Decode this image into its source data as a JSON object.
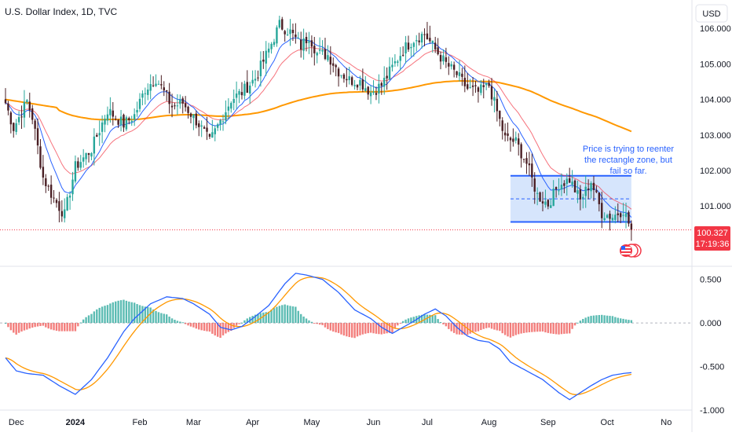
{
  "header": {
    "title": "U.S. Dollar Index, 1D, TVC"
  },
  "currency_button": {
    "label": "USD"
  },
  "price_badge": {
    "price": "100.327",
    "countdown": "17:19:36"
  },
  "annotation": {
    "lines": [
      "Price is trying to reenter",
      "the rectangle zone, but",
      "fail so far."
    ],
    "color": "#2962ff"
  },
  "colors": {
    "up": "#26a69a",
    "down": "#4a1f24",
    "ema_fast": "#2962ff",
    "ema_mid": "#f23645",
    "ema_slow": "#ff9800",
    "macd_line": "#2962ff",
    "signal_line": "#ff9800",
    "hist_pos": "#26a69a",
    "hist_neg": "#ef5350",
    "zone_fill": "#cfe0fb",
    "zone_border": "#2962ff",
    "badge": "#f23645"
  },
  "chart_data": [
    {
      "type": "candlestick",
      "title": "U.S. Dollar Index, 1D, TVC",
      "ylim": [
        99.3,
        106.8
      ],
      "y_ticks": [
        "106.000",
        "105.000",
        "104.000",
        "103.000",
        "102.000",
        "101.000"
      ],
      "y_tick_values": [
        106,
        105,
        104,
        103,
        102,
        101
      ],
      "x_ticks": [
        "Dec",
        "2024",
        "Feb",
        "Mar",
        "Apr",
        "May",
        "Jun",
        "Jul",
        "Aug",
        "Sep",
        "Oct",
        "No"
      ],
      "x_tick_index": [
        4,
        26,
        50,
        70,
        92,
        114,
        137,
        157,
        180,
        202,
        224,
        246
      ],
      "last_price": 100.327,
      "series": [
        {
          "name": "",
          "kind": "ema",
          "period": 10
        },
        {
          "name": "",
          "kind": "ema",
          "period": 20
        },
        {
          "name": "",
          "kind": "ema",
          "period": 200
        }
      ],
      "zone": {
        "top": 101.85,
        "bottom": 100.55,
        "mid": 101.2,
        "start_index": 188,
        "end_index": 233
      },
      "key_closes": [
        [
          0,
          103.9
        ],
        [
          3,
          103.2
        ],
        [
          8,
          103.95
        ],
        [
          10,
          103.5
        ],
        [
          14,
          101.8
        ],
        [
          18,
          101.2
        ],
        [
          22,
          100.75
        ],
        [
          26,
          102.1
        ],
        [
          32,
          102.6
        ],
        [
          38,
          103.7
        ],
        [
          44,
          103.3
        ],
        [
          48,
          103.55
        ],
        [
          52,
          104.3
        ],
        [
          56,
          104.6
        ],
        [
          62,
          103.8
        ],
        [
          66,
          103.9
        ],
        [
          72,
          103.3
        ],
        [
          76,
          102.8
        ],
        [
          80,
          103.4
        ],
        [
          84,
          104.0
        ],
        [
          88,
          104.2
        ],
        [
          93,
          104.6
        ],
        [
          98,
          105.4
        ],
        [
          102,
          106.1
        ],
        [
          106,
          105.9
        ],
        [
          110,
          105.5
        ],
        [
          113,
          105.8
        ],
        [
          116,
          105.3
        ],
        [
          120,
          105.25
        ],
        [
          124,
          104.8
        ],
        [
          128,
          104.55
        ],
        [
          132,
          104.5
        ],
        [
          136,
          104.2
        ],
        [
          140,
          104.4
        ],
        [
          144,
          104.9
        ],
        [
          148,
          105.4
        ],
        [
          152,
          105.7
        ],
        [
          156,
          105.85
        ],
        [
          160,
          105.4
        ],
        [
          164,
          105.0
        ],
        [
          168,
          104.7
        ],
        [
          172,
          104.3
        ],
        [
          176,
          104.2
        ],
        [
          180,
          104.4
        ],
        [
          184,
          103.4
        ],
        [
          186,
          102.9
        ],
        [
          190,
          102.8
        ],
        [
          194,
          102.2
        ],
        [
          198,
          101.3
        ],
        [
          202,
          101.05
        ],
        [
          206,
          101.6
        ],
        [
          210,
          101.75
        ],
        [
          214,
          101.15
        ],
        [
          218,
          101.7
        ],
        [
          222,
          100.8
        ],
        [
          226,
          100.7
        ],
        [
          230,
          100.9
        ],
        [
          233,
          100.327
        ]
      ]
    },
    {
      "type": "macd",
      "ylim": [
        -1.0,
        0.65
      ],
      "y_ticks": [
        "0.500",
        "0.000",
        "-0.500",
        "-1.000"
      ],
      "y_tick_values": [
        0.5,
        0.0,
        -0.5,
        -1.0
      ],
      "series": [
        {
          "name": "",
          "kind": "macd"
        },
        {
          "name": "",
          "kind": "signal"
        },
        {
          "name": "",
          "kind": "histogram"
        }
      ],
      "key_values": [
        [
          0,
          -0.4
        ],
        [
          4,
          -0.55
        ],
        [
          8,
          -0.58
        ],
        [
          14,
          -0.6
        ],
        [
          20,
          -0.72
        ],
        [
          26,
          -0.82
        ],
        [
          32,
          -0.65
        ],
        [
          38,
          -0.4
        ],
        [
          44,
          -0.1
        ],
        [
          48,
          0.05
        ],
        [
          54,
          0.22
        ],
        [
          60,
          0.3
        ],
        [
          66,
          0.28
        ],
        [
          70,
          0.22
        ],
        [
          76,
          0.1
        ],
        [
          80,
          -0.05
        ],
        [
          84,
          -0.08
        ],
        [
          88,
          -0.04
        ],
        [
          92,
          0.05
        ],
        [
          98,
          0.2
        ],
        [
          104,
          0.45
        ],
        [
          108,
          0.57
        ],
        [
          112,
          0.55
        ],
        [
          118,
          0.5
        ],
        [
          124,
          0.35
        ],
        [
          130,
          0.15
        ],
        [
          136,
          0.05
        ],
        [
          140,
          -0.05
        ],
        [
          144,
          -0.12
        ],
        [
          148,
          -0.05
        ],
        [
          152,
          0.02
        ],
        [
          156,
          0.1
        ],
        [
          160,
          0.16
        ],
        [
          164,
          0.08
        ],
        [
          168,
          -0.05
        ],
        [
          172,
          -0.15
        ],
        [
          176,
          -0.2
        ],
        [
          180,
          -0.22
        ],
        [
          184,
          -0.3
        ],
        [
          188,
          -0.45
        ],
        [
          194,
          -0.55
        ],
        [
          200,
          -0.65
        ],
        [
          206,
          -0.8
        ],
        [
          210,
          -0.88
        ],
        [
          214,
          -0.8
        ],
        [
          218,
          -0.72
        ],
        [
          222,
          -0.65
        ],
        [
          226,
          -0.6
        ],
        [
          230,
          -0.58
        ],
        [
          233,
          -0.57
        ]
      ]
    }
  ]
}
